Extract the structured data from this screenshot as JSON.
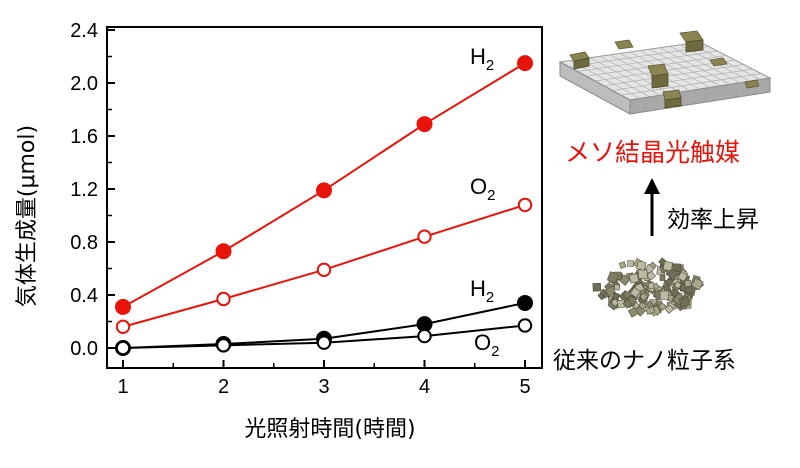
{
  "chart_data": {
    "type": "line",
    "xlabel": "光照射時間(時間)",
    "ylabel": "気体生成量(μmol)",
    "xlim": [
      0.85,
      5.15
    ],
    "ylim": [
      -0.1,
      2.4
    ],
    "x_ticks": [
      1,
      2,
      3,
      4,
      5
    ],
    "x_tick_labels": [
      "1",
      "2",
      "3",
      "4",
      "5"
    ],
    "y_ticks": [
      0.0,
      0.4,
      0.8,
      1.2,
      1.6,
      2.0,
      2.4
    ],
    "y_tick_labels": [
      "0.0",
      "0.4",
      "0.8",
      "1.2",
      "1.6",
      "2.0",
      "2.4"
    ],
    "grid": false,
    "legend": "none",
    "series": [
      {
        "name": "H2",
        "group": "meso",
        "color": "#e8140c",
        "marker": "filled",
        "x": [
          1,
          2,
          3,
          4,
          5
        ],
        "values": [
          0.31,
          0.73,
          1.19,
          1.69,
          2.15
        ]
      },
      {
        "name": "O2",
        "group": "meso",
        "color": "#e8140c",
        "marker": "open",
        "x": [
          1,
          2,
          3,
          4,
          5
        ],
        "values": [
          0.16,
          0.37,
          0.59,
          0.84,
          1.08
        ]
      },
      {
        "name": "H2",
        "group": "nano",
        "color": "#000000",
        "marker": "filled",
        "x": [
          1,
          2,
          3,
          4,
          5
        ],
        "values": [
          0.0,
          0.03,
          0.07,
          0.18,
          0.34
        ]
      },
      {
        "name": "O2",
        "group": "nano",
        "color": "#000000",
        "marker": "open",
        "x": [
          1,
          2,
          3,
          4,
          5
        ],
        "values": [
          0.0,
          0.02,
          0.04,
          0.09,
          0.17
        ]
      }
    ],
    "series_labels": [
      {
        "base": "H",
        "sub": "2",
        "color": "#000000"
      },
      {
        "base": "O",
        "sub": "2",
        "color": "#000000"
      },
      {
        "base": "H",
        "sub": "2",
        "color": "#000000"
      },
      {
        "base": "O",
        "sub": "2",
        "color": "#000000"
      }
    ]
  },
  "side": {
    "meso_label": "メソ結晶光触媒",
    "efficiency_label": "効率上昇",
    "nano_label": "従来のナノ粒子系",
    "meso_color": "#e8140c"
  }
}
